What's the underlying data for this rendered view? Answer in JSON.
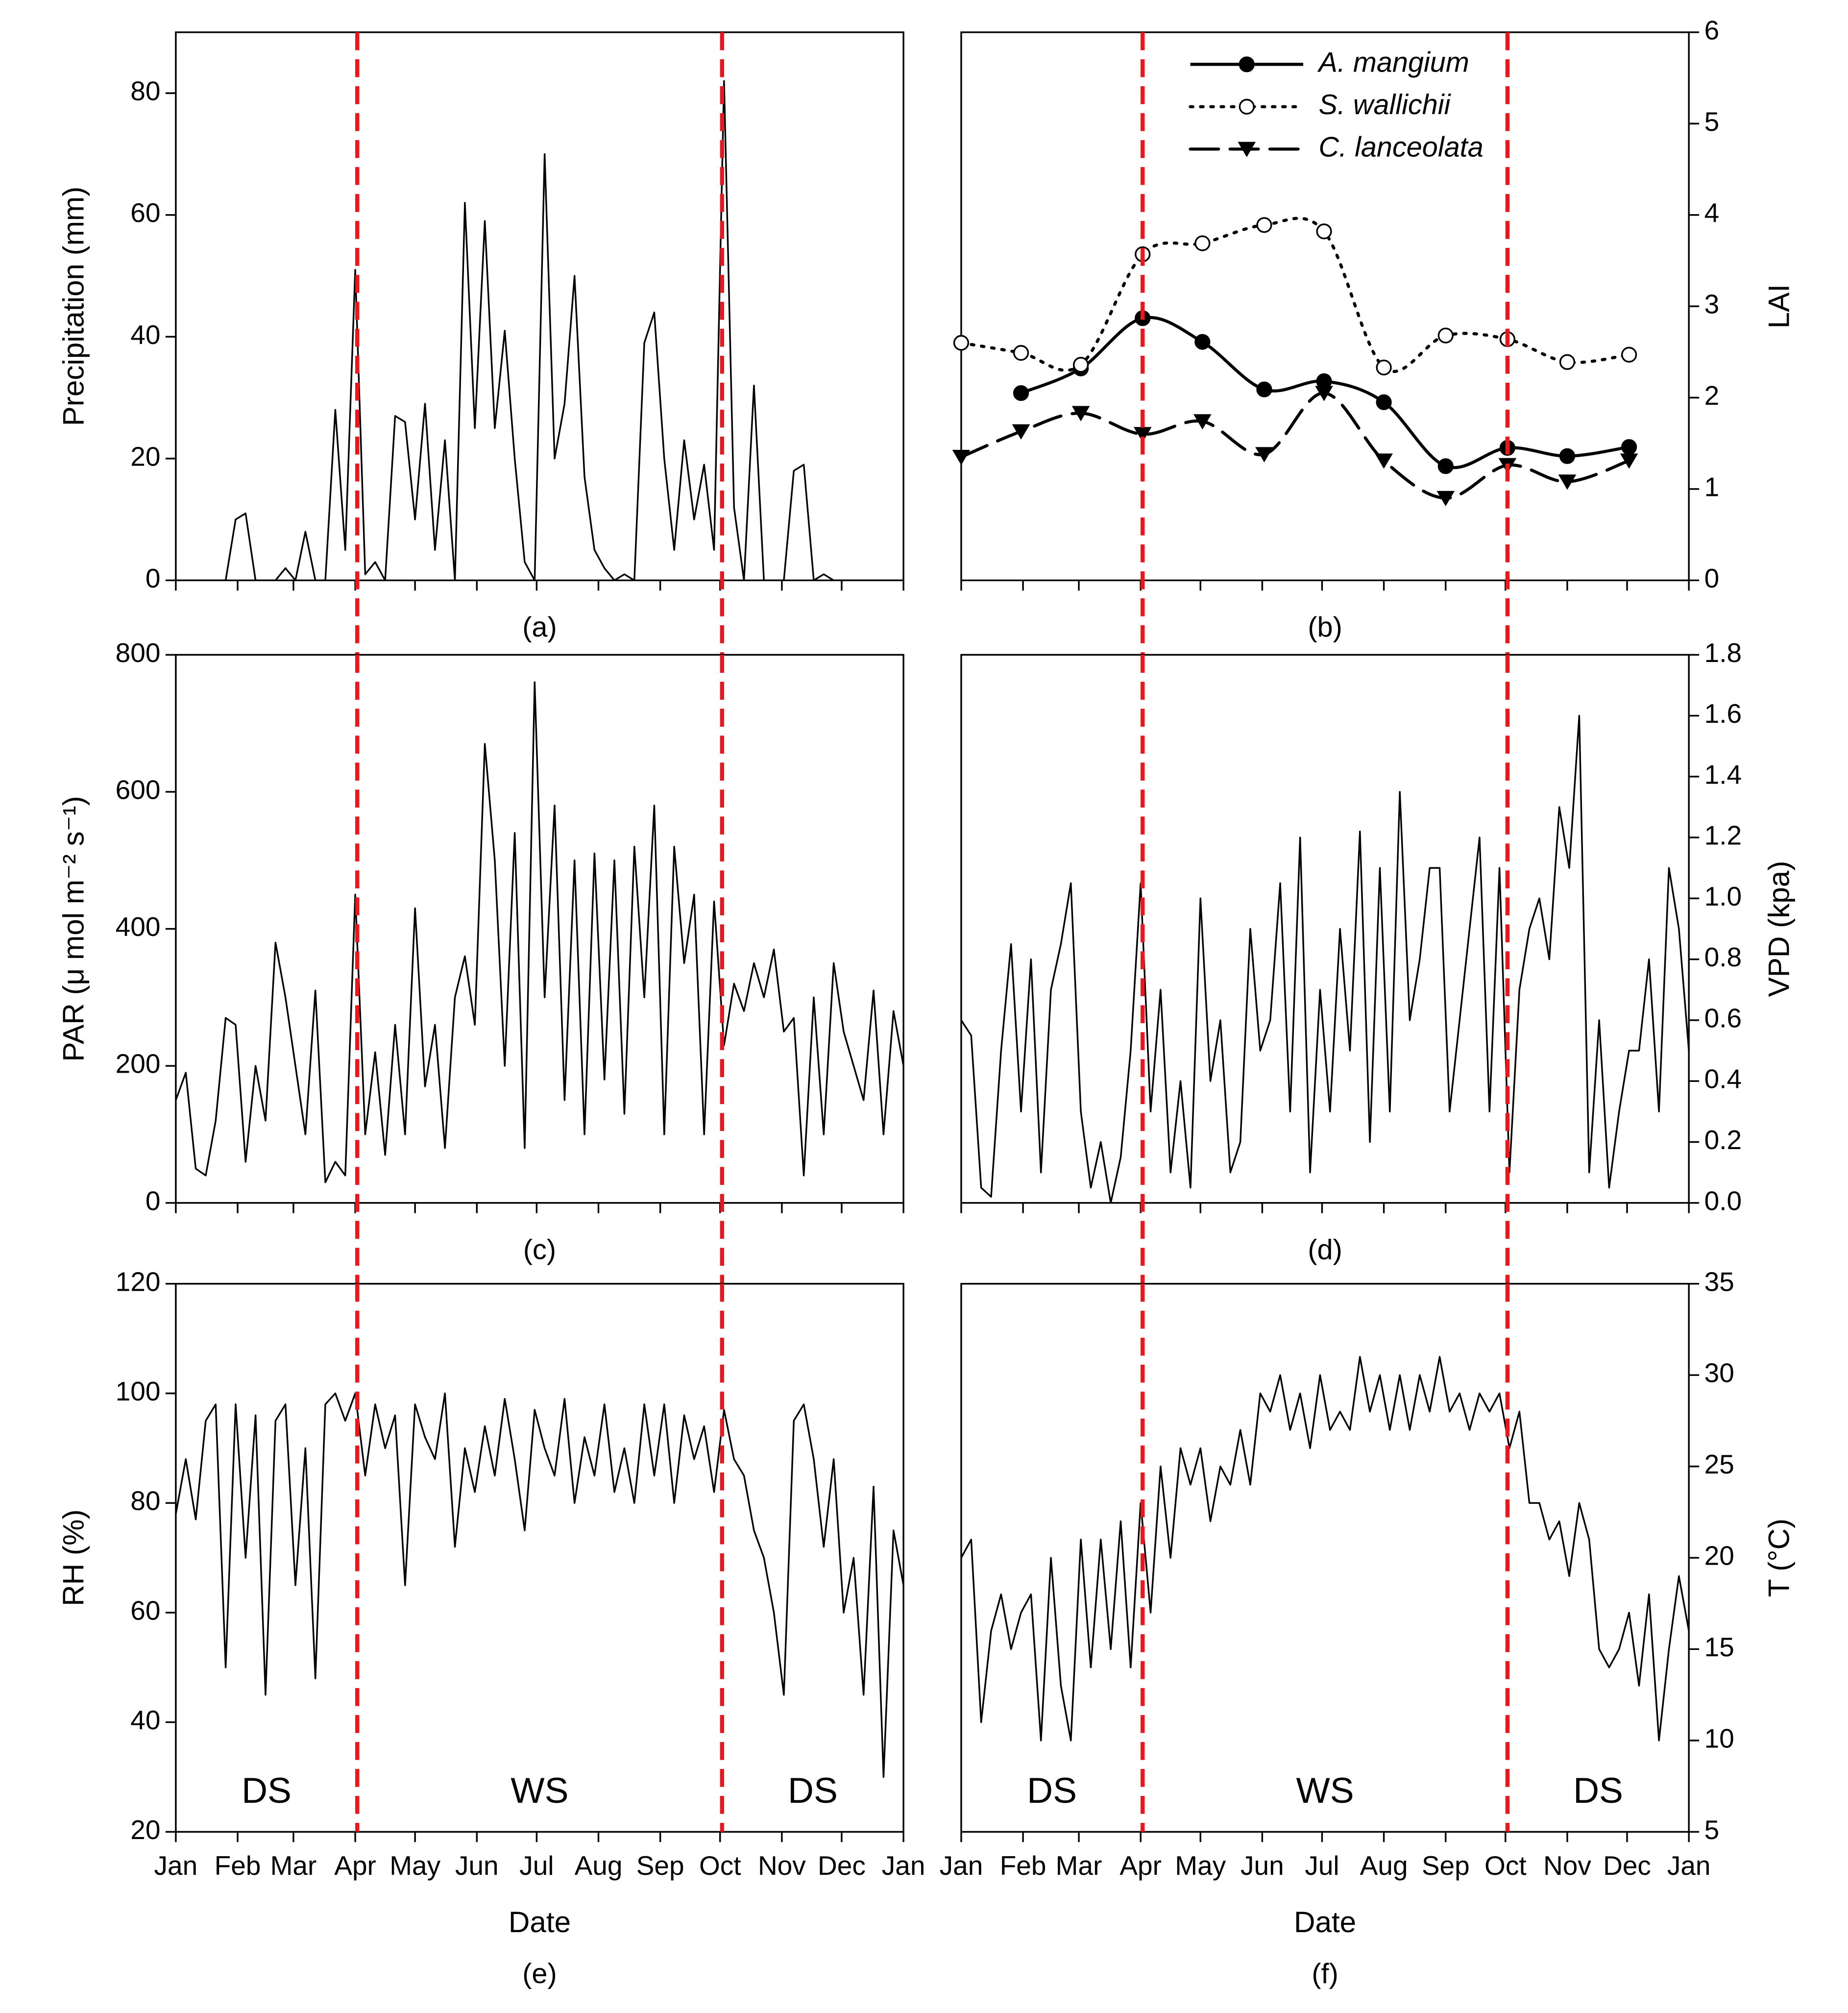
{
  "chart_data": [
    {
      "type": "line",
      "panel_label": "(a)",
      "ylabel": "Precipitation (mm)",
      "yaxis_side": "left",
      "color": "#000000",
      "x": [
        0,
        5,
        10,
        15,
        20,
        25,
        30,
        35,
        40,
        45,
        50,
        55,
        60,
        65,
        70,
        75,
        80,
        85,
        90,
        95,
        100,
        105,
        110,
        115,
        120,
        125,
        130,
        135,
        140,
        145,
        150,
        155,
        160,
        165,
        170,
        175,
        180,
        185,
        190,
        195,
        200,
        205,
        210,
        215,
        220,
        225,
        230,
        235,
        240,
        245,
        250,
        255,
        260,
        265,
        270,
        275,
        280,
        285,
        290,
        295,
        300,
        305,
        310,
        315,
        320,
        325,
        330,
        335,
        340,
        345,
        350,
        355,
        360,
        365
      ],
      "values": [
        0,
        0,
        0,
        0,
        0,
        0,
        10,
        11,
        0,
        0,
        0,
        2,
        0,
        8,
        0,
        0,
        28,
        5,
        51,
        1,
        3,
        0,
        27,
        26,
        10,
        29,
        5,
        23,
        0,
        62,
        25,
        59,
        25,
        41,
        20,
        3,
        0,
        70,
        20,
        29,
        50,
        17,
        5,
        2,
        0,
        1,
        0,
        39,
        44,
        20,
        5,
        23,
        10,
        19,
        5,
        82,
        12,
        0,
        32,
        0,
        0,
        0,
        18,
        19,
        0,
        1,
        0,
        0,
        0,
        0,
        0,
        0,
        0,
        0
      ],
      "xlim": [
        0,
        365
      ],
      "xticks": [
        0,
        31,
        59,
        90,
        120,
        151,
        181,
        212,
        243,
        273,
        304,
        334,
        365
      ],
      "xtick_labels": false,
      "ylim": [
        0,
        90
      ],
      "yticks": [
        0,
        20,
        40,
        60,
        80
      ],
      "vlines": [
        91,
        274
      ],
      "vline_color": "#e8191e"
    },
    {
      "type": "line",
      "panel_label": "(b)",
      "ylabel": "LAI",
      "yaxis_side": "right",
      "smooth": true,
      "legend": "upper center",
      "x": [
        0,
        30,
        60,
        91,
        121,
        152,
        182,
        212,
        243,
        274,
        304,
        335
      ],
      "series": [
        {
          "name": "A. mangium",
          "color": "#000000",
          "line_style": "solid",
          "marker": "circle-filled",
          "values": [
            null,
            2.05,
            2.32,
            2.87,
            2.61,
            2.09,
            2.18,
            1.95,
            1.25,
            1.45,
            1.36,
            1.46
          ]
        },
        {
          "name": "S. wallichii",
          "color": "#000000",
          "line_style": "dotted",
          "marker": "circle-open",
          "values": [
            2.6,
            2.49,
            2.36,
            3.57,
            3.69,
            3.89,
            3.82,
            2.33,
            2.68,
            2.64,
            2.39,
            2.47
          ]
        },
        {
          "name": "C. lanceolata",
          "color": "#000000",
          "line_style": "dashed",
          "marker": "triangle-down",
          "values": [
            1.35,
            1.63,
            1.83,
            1.6,
            1.74,
            1.38,
            2.05,
            1.31,
            0.9,
            1.26,
            1.08,
            1.31
          ]
        }
      ],
      "xlim": [
        0,
        365
      ],
      "xticks": [
        0,
        31,
        59,
        90,
        120,
        151,
        181,
        212,
        243,
        273,
        304,
        334,
        365
      ],
      "xtick_labels": false,
      "ylim": [
        0,
        6
      ],
      "yticks": [
        0,
        1,
        2,
        3,
        4,
        5,
        6
      ],
      "vlines": [
        91,
        274
      ],
      "vline_color": "#e8191e"
    },
    {
      "type": "line",
      "panel_label": "(c)",
      "ylabel": "PAR (μ mol m⁻² s⁻¹)",
      "yaxis_side": "left",
      "color": "#000000",
      "x": [
        0,
        5,
        10,
        15,
        20,
        25,
        30,
        35,
        40,
        45,
        50,
        55,
        60,
        65,
        70,
        75,
        80,
        85,
        90,
        95,
        100,
        105,
        110,
        115,
        120,
        125,
        130,
        135,
        140,
        145,
        150,
        155,
        160,
        165,
        170,
        175,
        180,
        185,
        190,
        195,
        200,
        205,
        210,
        215,
        220,
        225,
        230,
        235,
        240,
        245,
        250,
        255,
        260,
        265,
        270,
        275,
        280,
        285,
        290,
        295,
        300,
        305,
        310,
        315,
        320,
        325,
        330,
        335,
        340,
        345,
        350,
        355,
        360,
        365
      ],
      "values": [
        150,
        190,
        50,
        40,
        120,
        270,
        260,
        60,
        200,
        120,
        380,
        300,
        200,
        100,
        310,
        30,
        60,
        40,
        450,
        100,
        220,
        70,
        260,
        100,
        430,
        170,
        260,
        80,
        300,
        360,
        260,
        670,
        500,
        200,
        540,
        80,
        760,
        300,
        580,
        150,
        500,
        100,
        510,
        180,
        500,
        130,
        520,
        300,
        580,
        100,
        520,
        350,
        450,
        100,
        440,
        230,
        320,
        280,
        350,
        300,
        370,
        250,
        270,
        40,
        300,
        100,
        350,
        250,
        200,
        150,
        310,
        100,
        280,
        200
      ],
      "xlim": [
        0,
        365
      ],
      "xticks": [
        0,
        31,
        59,
        90,
        120,
        151,
        181,
        212,
        243,
        273,
        304,
        334,
        365
      ],
      "xtick_labels": false,
      "ylim": [
        0,
        800
      ],
      "yticks": [
        0,
        200,
        400,
        600,
        800
      ],
      "vlines": [
        91,
        274
      ],
      "vline_color": "#e8191e"
    },
    {
      "type": "line",
      "panel_label": "(d)",
      "ylabel": "VPD (kpa)",
      "yaxis_side": "right",
      "color": "#000000",
      "x": [
        0,
        5,
        10,
        15,
        20,
        25,
        30,
        35,
        40,
        45,
        50,
        55,
        60,
        65,
        70,
        75,
        80,
        85,
        90,
        95,
        100,
        105,
        110,
        115,
        120,
        125,
        130,
        135,
        140,
        145,
        150,
        155,
        160,
        165,
        170,
        175,
        180,
        185,
        190,
        195,
        200,
        205,
        210,
        215,
        220,
        225,
        230,
        235,
        240,
        245,
        250,
        255,
        260,
        265,
        270,
        275,
        280,
        285,
        290,
        295,
        300,
        305,
        310,
        315,
        320,
        325,
        330,
        335,
        340,
        345,
        350,
        355,
        360,
        365
      ],
      "values": [
        0.6,
        0.55,
        0.05,
        0.02,
        0.5,
        0.85,
        0.3,
        0.8,
        0.1,
        0.7,
        0.85,
        1.05,
        0.3,
        0.05,
        0.2,
        0,
        0.15,
        0.5,
        1.05,
        0.3,
        0.7,
        0.1,
        0.4,
        0.05,
        1.0,
        0.4,
        0.6,
        0.1,
        0.2,
        0.9,
        0.5,
        0.6,
        1.05,
        0.3,
        1.2,
        0.1,
        0.7,
        0.3,
        0.9,
        0.5,
        1.22,
        0.2,
        1.1,
        0.3,
        1.35,
        0.6,
        0.8,
        1.1,
        1.1,
        0.3,
        0.6,
        0.9,
        1.2,
        0.3,
        1.1,
        0.1,
        0.7,
        0.9,
        1.0,
        0.8,
        1.3,
        1.1,
        1.6,
        0.1,
        0.6,
        0.05,
        0.3,
        0.5,
        0.5,
        0.8,
        0.3,
        1.1,
        0.9,
        0.5
      ],
      "xlim": [
        0,
        365
      ],
      "xticks": [
        0,
        31,
        59,
        90,
        120,
        151,
        181,
        212,
        243,
        273,
        304,
        334,
        365
      ],
      "xtick_labels": false,
      "ylim": [
        0,
        1.8
      ],
      "yticks": [
        {
          "value": 0,
          "label": "0.0"
        },
        0.2,
        0.4,
        0.6,
        0.8,
        {
          "value": 1,
          "label": "1.0"
        },
        1.2,
        1.4,
        1.6,
        1.8
      ],
      "vlines": [
        91,
        274
      ],
      "vline_color": "#e8191e"
    },
    {
      "type": "line",
      "panel_label": "(e)",
      "ylabel": "RH (%)",
      "xlabel": "Date",
      "yaxis_side": "left",
      "color": "#000000",
      "x": [
        0,
        5,
        10,
        15,
        20,
        25,
        30,
        35,
        40,
        45,
        50,
        55,
        60,
        65,
        70,
        75,
        80,
        85,
        90,
        95,
        100,
        105,
        110,
        115,
        120,
        125,
        130,
        135,
        140,
        145,
        150,
        155,
        160,
        165,
        170,
        175,
        180,
        185,
        190,
        195,
        200,
        205,
        210,
        215,
        220,
        225,
        230,
        235,
        240,
        245,
        250,
        255,
        260,
        265,
        270,
        275,
        280,
        285,
        290,
        295,
        300,
        305,
        310,
        315,
        320,
        325,
        330,
        335,
        340,
        345,
        350,
        355,
        360,
        365
      ],
      "values": [
        78,
        88,
        77,
        95,
        98,
        50,
        98,
        70,
        96,
        45,
        95,
        98,
        65,
        90,
        48,
        98,
        100,
        95,
        100,
        85,
        98,
        90,
        96,
        65,
        98,
        92,
        88,
        100,
        72,
        90,
        82,
        94,
        85,
        99,
        88,
        75,
        97,
        90,
        85,
        99,
        80,
        92,
        85,
        98,
        82,
        90,
        80,
        98,
        85,
        98,
        80,
        96,
        88,
        94,
        82,
        97,
        88,
        85,
        75,
        70,
        60,
        45,
        95,
        98,
        88,
        72,
        88,
        60,
        70,
        45,
        83,
        30,
        75,
        65
      ],
      "xlim": [
        0,
        365
      ],
      "xticks": [
        {
          "value": 0,
          "label": "Jan"
        },
        {
          "value": 31,
          "label": "Feb"
        },
        {
          "value": 59,
          "label": "Mar"
        },
        {
          "value": 90,
          "label": "Apr"
        },
        {
          "value": 120,
          "label": "May"
        },
        {
          "value": 151,
          "label": "Jun"
        },
        {
          "value": 181,
          "label": "Jul"
        },
        {
          "value": 212,
          "label": "Aug"
        },
        {
          "value": 243,
          "label": "Sep"
        },
        {
          "value": 273,
          "label": "Oct"
        },
        {
          "value": 304,
          "label": "Nov"
        },
        {
          "value": 334,
          "label": "Dec"
        },
        {
          "value": 365,
          "label": "Jan"
        }
      ],
      "ylim": [
        20,
        120
      ],
      "yticks": [
        20,
        40,
        60,
        80,
        100,
        120
      ],
      "vlines": [
        91,
        274
      ],
      "vline_color": "#e8191e",
      "annotations": [
        "DS",
        "WS",
        "DS"
      ]
    },
    {
      "type": "line",
      "panel_label": "(f)",
      "ylabel": "T (°C)",
      "xlabel": "Date",
      "yaxis_side": "right",
      "color": "#000000",
      "x": [
        0,
        5,
        10,
        15,
        20,
        25,
        30,
        35,
        40,
        45,
        50,
        55,
        60,
        65,
        70,
        75,
        80,
        85,
        90,
        95,
        100,
        105,
        110,
        115,
        120,
        125,
        130,
        135,
        140,
        145,
        150,
        155,
        160,
        165,
        170,
        175,
        180,
        185,
        190,
        195,
        200,
        205,
        210,
        215,
        220,
        225,
        230,
        235,
        240,
        245,
        250,
        255,
        260,
        265,
        270,
        275,
        280,
        285,
        290,
        295,
        300,
        305,
        310,
        315,
        320,
        325,
        330,
        335,
        340,
        345,
        350,
        355,
        360,
        365
      ],
      "values": [
        20,
        21,
        11,
        16,
        18,
        15,
        17,
        18,
        10,
        20,
        13,
        10,
        21,
        14,
        21,
        15,
        22,
        14,
        23,
        17,
        25,
        20,
        26,
        24,
        26,
        22,
        25,
        24,
        27,
        24,
        29,
        28,
        30,
        27,
        29,
        26,
        30,
        27,
        28,
        27,
        31,
        28,
        30,
        27,
        30,
        27,
        30,
        28,
        31,
        28,
        29,
        27,
        29,
        28,
        29,
        26,
        28,
        23,
        23,
        21,
        22,
        19,
        23,
        21,
        15,
        14,
        15,
        17,
        13,
        18,
        10,
        15,
        19,
        16
      ],
      "xlim": [
        0,
        365
      ],
      "xticks": [
        {
          "value": 0,
          "label": "Jan"
        },
        {
          "value": 31,
          "label": "Feb"
        },
        {
          "value": 59,
          "label": "Mar"
        },
        {
          "value": 90,
          "label": "Apr"
        },
        {
          "value": 120,
          "label": "May"
        },
        {
          "value": 151,
          "label": "Jun"
        },
        {
          "value": 181,
          "label": "Jul"
        },
        {
          "value": 212,
          "label": "Aug"
        },
        {
          "value": 243,
          "label": "Sep"
        },
        {
          "value": 273,
          "label": "Oct"
        },
        {
          "value": 304,
          "label": "Nov"
        },
        {
          "value": 334,
          "label": "Dec"
        },
        {
          "value": 365,
          "label": "Jan"
        }
      ],
      "ylim": [
        5,
        35
      ],
      "yticks": [
        5,
        10,
        15,
        20,
        25,
        30,
        35
      ],
      "vlines": [
        91,
        274
      ],
      "vline_color": "#e8191e",
      "annotations": [
        "DS",
        "WS",
        "DS"
      ]
    }
  ]
}
